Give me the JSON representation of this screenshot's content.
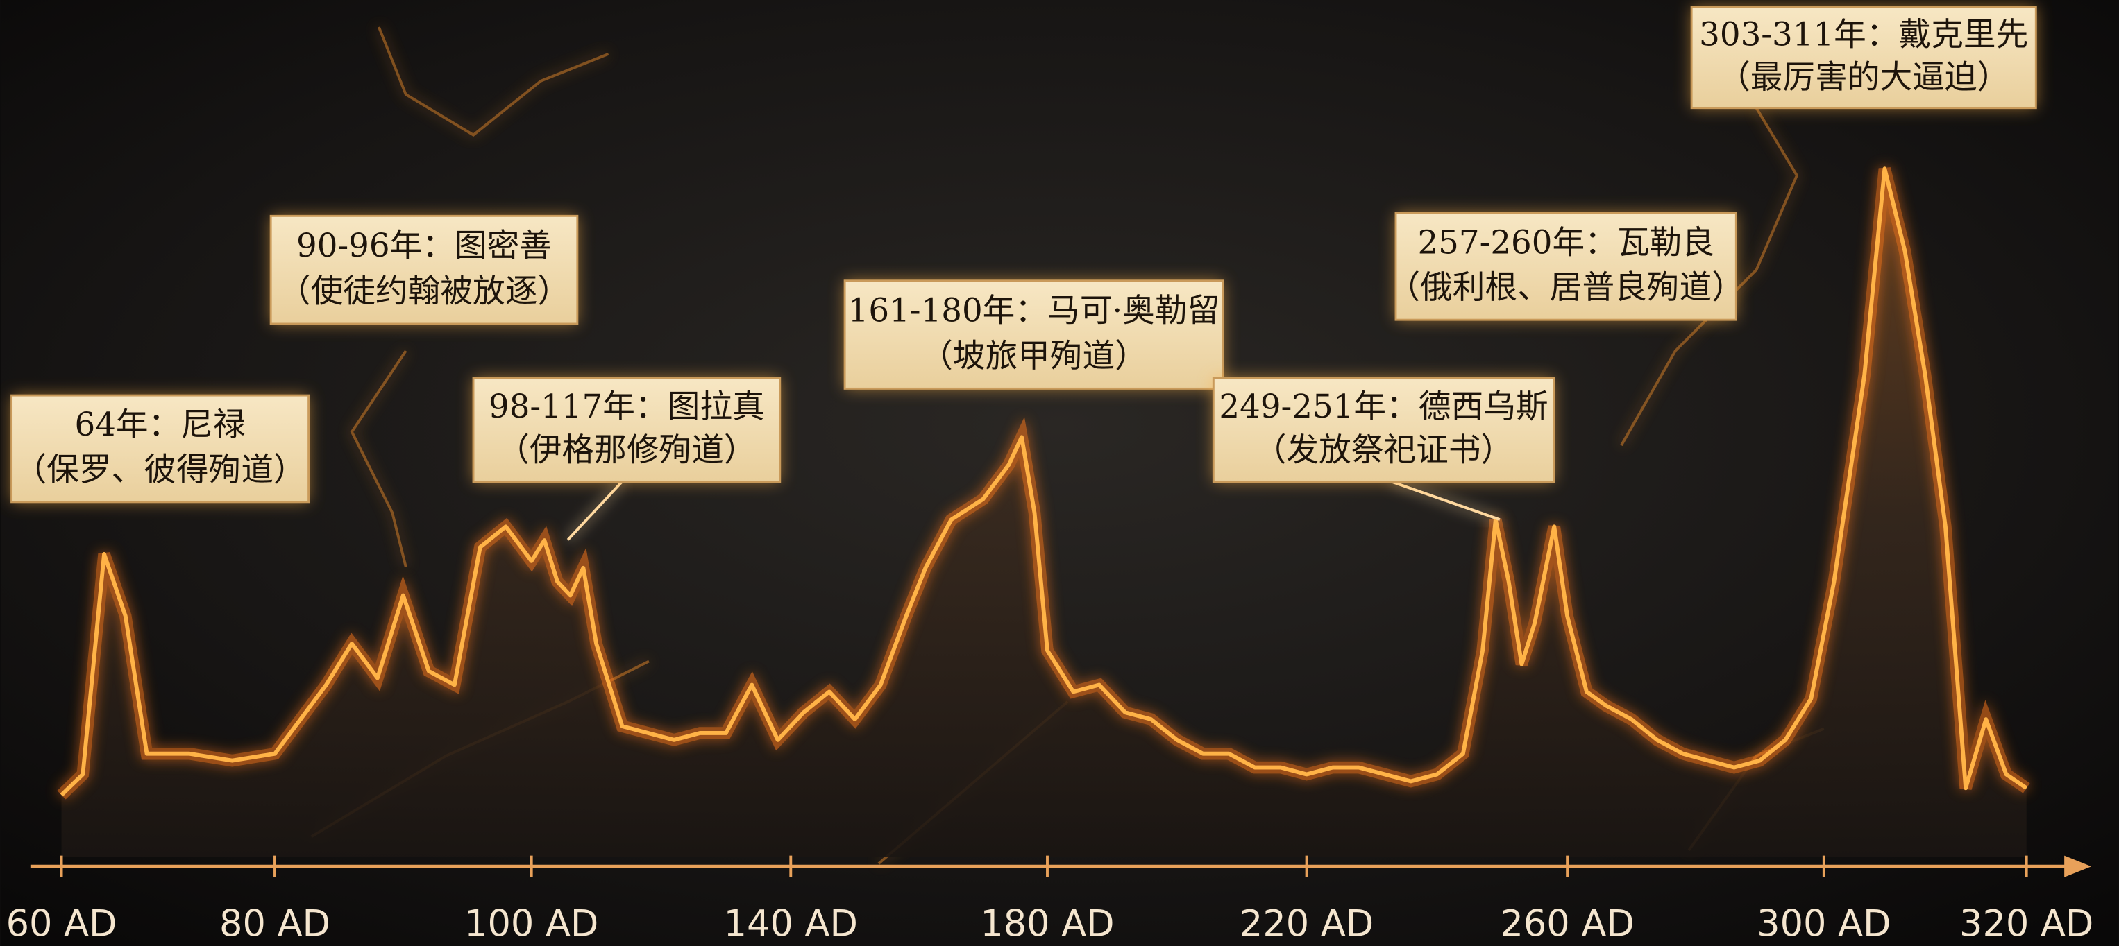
{
  "chart_data": {
    "type": "line",
    "color": "#ffb347",
    "x": [
      60,
      62,
      64,
      66,
      68,
      72,
      76,
      80,
      84,
      86,
      88,
      90,
      92,
      94,
      96,
      98,
      100,
      102,
      104,
      106,
      108,
      110,
      114,
      118,
      122,
      126,
      130,
      134,
      138,
      142,
      146,
      150,
      154,
      158,
      161,
      165,
      170,
      174,
      176,
      178,
      180,
      184,
      188,
      192,
      196,
      200,
      204,
      208,
      212,
      216,
      220,
      224,
      228,
      232,
      236,
      240,
      244,
      247,
      249,
      251,
      253,
      255,
      258,
      260,
      263,
      266,
      270,
      274,
      278,
      282,
      286,
      290,
      294,
      298,
      301,
      304,
      306,
      308,
      310,
      312,
      314,
      316,
      318,
      320
    ],
    "values": [
      9,
      12,
      44,
      35,
      15,
      15,
      14,
      15,
      25,
      31,
      26,
      38,
      27,
      25,
      45,
      48,
      43,
      46,
      40,
      38,
      42,
      31,
      19,
      18,
      17,
      18,
      18,
      25,
      17,
      21,
      24,
      20,
      25,
      35,
      42,
      49,
      52,
      57,
      61,
      50,
      30,
      24,
      25,
      21,
      20,
      17,
      15,
      15,
      13,
      13,
      12,
      13,
      13,
      12,
      11,
      12,
      15,
      30,
      49,
      40,
      28,
      34,
      48,
      35,
      24,
      22,
      20,
      17,
      15,
      14,
      13,
      14,
      17,
      23,
      40,
      70,
      100,
      88,
      70,
      48,
      10,
      20,
      12,
      10
    ],
    "ylim": [
      0,
      100
    ],
    "xlim": [
      60,
      320
    ],
    "xticks": [
      {
        "value": 60,
        "label": "60 AD"
      },
      {
        "value": 80,
        "label": "80 AD"
      },
      {
        "value": 100,
        "label": "100 AD"
      },
      {
        "value": 140,
        "label": "140 AD"
      },
      {
        "value": 180,
        "label": "180 AD"
      },
      {
        "value": 220,
        "label": "220 AD"
      },
      {
        "value": 260,
        "label": "260 AD"
      },
      {
        "value": 300,
        "label": "300 AD"
      },
      {
        "value": 320,
        "label": "320 AD"
      }
    ],
    "annotations": [
      {
        "lines": [
          "64年：尼禄",
          "（保罗、彼得殉道）"
        ]
      },
      {
        "lines": [
          "90-96年：图密善",
          "（使徒约翰被放逐）"
        ]
      },
      {
        "lines": [
          "98-117年：图拉真",
          "（伊格那修殉道）"
        ]
      },
      {
        "lines": [
          "161-180年：马可·奥勒留",
          "（坡旅甲殉道）"
        ]
      },
      {
        "lines": [
          "249-251年：德西乌斯",
          "（发放祭祀证书）"
        ]
      },
      {
        "lines": [
          "257-260年：瓦勒良",
          "（俄利根、居普良殉道）"
        ]
      },
      {
        "lines": [
          "303-311年：戴克里先",
          "（最厉害的大逼迫）"
        ]
      }
    ]
  }
}
